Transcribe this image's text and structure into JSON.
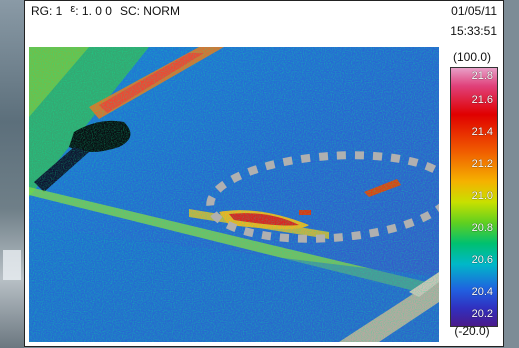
{
  "header": {
    "range": "RG: 1",
    "emissivity_symbol": "ε",
    "emissivity_value": ": 1. 0 0",
    "scale_mode": "SC: NORM",
    "date": "01/05/11",
    "time": "15:33:51"
  },
  "scale": {
    "max_label": "(100.0)",
    "min_label": "(-20.0)",
    "ticks": [
      "21.8",
      "21.6",
      "21.4",
      "21.2",
      "21.0",
      "20.8",
      "20.6",
      "20.4",
      "20.2"
    ]
  },
  "colors": {
    "ellipse": "#b0b0b0",
    "cold_patch": "#101010",
    "hot_band": "#e02020"
  }
}
